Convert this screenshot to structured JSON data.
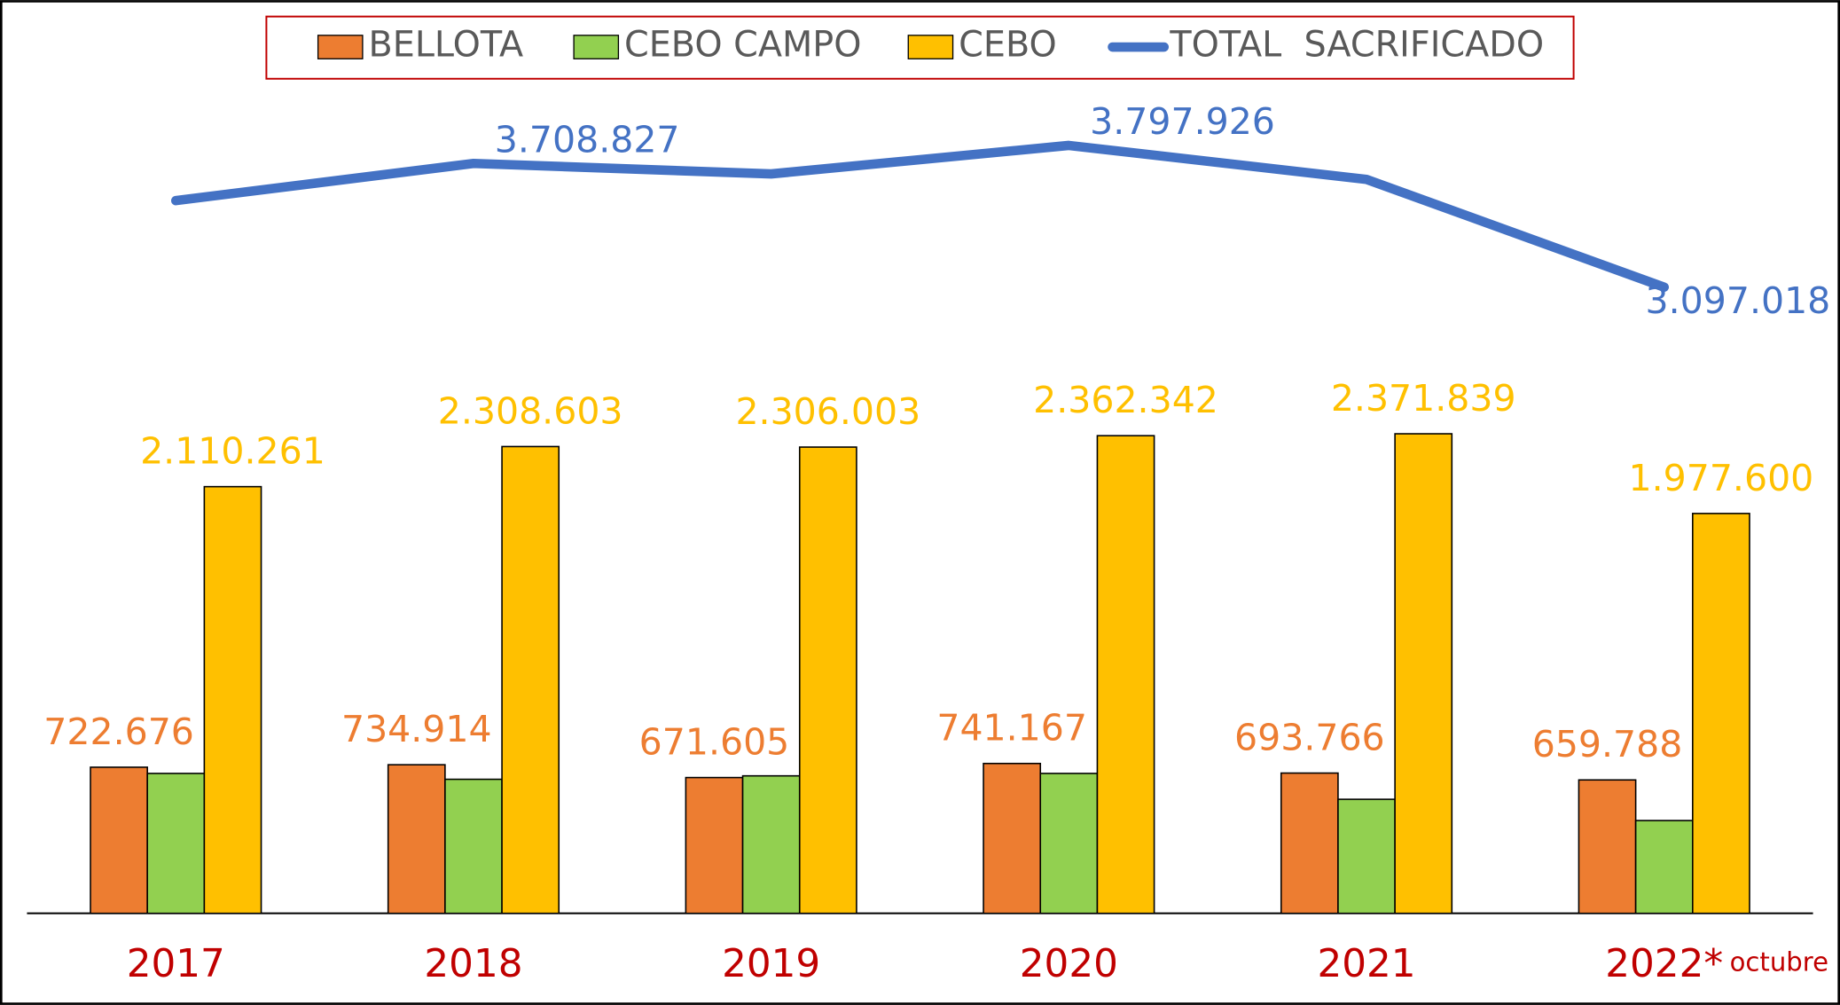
{
  "chart_data": {
    "type": "bar-line",
    "categories": [
      "2017",
      "2018",
      "2019",
      "2020",
      "2021",
      "2022*"
    ],
    "annotation": "octubre",
    "ylim": [
      0,
      4000000
    ],
    "legend": "top",
    "series": [
      {
        "name": "BELLOTA",
        "type": "bar",
        "color": "#ed7d31",
        "values": [
          722676,
          734914,
          671605,
          741167,
          693766,
          659788
        ],
        "value_labels": [
          "722.676",
          "734.914",
          "671.605",
          "741.167",
          "693.766",
          "659.788"
        ]
      },
      {
        "name": "CEBO CAMPO",
        "type": "bar",
        "color": "#92d050",
        "values": [
          692000,
          663000,
          680000,
          692000,
          564000,
          459000
        ]
      },
      {
        "name": "CEBO",
        "type": "bar",
        "color": "#ffc000",
        "values": [
          2110261,
          2308603,
          2306003,
          2362342,
          2371839,
          1977600
        ],
        "value_labels": [
          "2.110.261",
          "2.308.603",
          "2.306.003",
          "2.362.342",
          "2.371.839",
          "1.977.600"
        ]
      },
      {
        "name": "TOTAL  SACRIFICADO",
        "type": "line",
        "color": "#4472c4",
        "values": [
          3525000,
          3708827,
          3657000,
          3797926,
          3630000,
          3097018
        ],
        "value_labels": [
          null,
          "3.708.827",
          null,
          "3.797.926",
          null,
          "3.097.018"
        ]
      }
    ]
  }
}
